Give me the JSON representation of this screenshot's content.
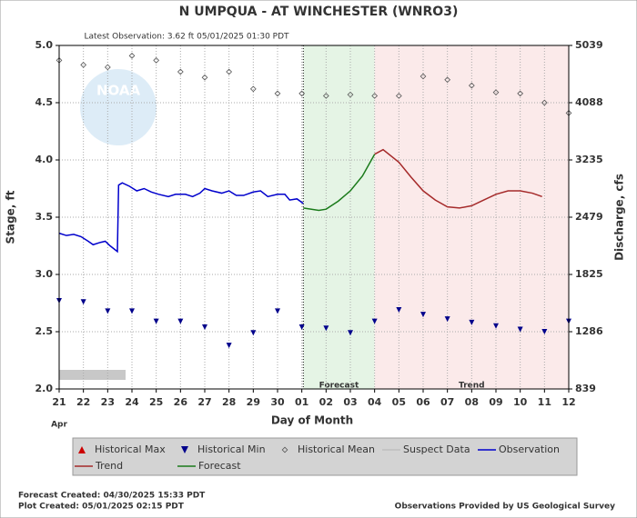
{
  "chart_data": {
    "type": "line",
    "title": "N UMPQUA - AT WINCHESTER  (WNRO3)",
    "subtitle": "Latest Observation: 3.62 ft 05/01/2025 01:30 PDT",
    "xlabel": "Day of Month",
    "xlabel_month": "Apr",
    "ylabel": "Stage, ft",
    "y2label": "Discharge, cfs",
    "logo_text": "NOAA",
    "xlim": [
      0,
      21
    ],
    "xticks": [
      {
        "value": 0,
        "label": "21"
      },
      {
        "value": 1,
        "label": "22"
      },
      {
        "value": 2,
        "label": "23"
      },
      {
        "value": 3,
        "label": "24"
      },
      {
        "value": 4,
        "label": "25"
      },
      {
        "value": 5,
        "label": "26"
      },
      {
        "value": 6,
        "label": "27"
      },
      {
        "value": 7,
        "label": "28"
      },
      {
        "value": 8,
        "label": "29"
      },
      {
        "value": 9,
        "label": "30"
      },
      {
        "value": 10,
        "label": "01"
      },
      {
        "value": 11,
        "label": "02"
      },
      {
        "value": 12,
        "label": "03"
      },
      {
        "value": 13,
        "label": "04"
      },
      {
        "value": 14,
        "label": "05"
      },
      {
        "value": 15,
        "label": "06"
      },
      {
        "value": 16,
        "label": "07"
      },
      {
        "value": 17,
        "label": "08"
      },
      {
        "value": 18,
        "label": "09"
      },
      {
        "value": 19,
        "label": "10"
      },
      {
        "value": 20,
        "label": "11"
      },
      {
        "value": 21,
        "label": "12"
      }
    ],
    "ylim": [
      2,
      5
    ],
    "yticks": [
      {
        "value": 2,
        "label": "2.0"
      },
      2.5,
      {
        "value": 3,
        "label": "3.0"
      },
      3.5,
      {
        "value": 4,
        "label": "4.0"
      },
      4.5,
      {
        "value": 5,
        "label": "5.0"
      }
    ],
    "y2ticks": [
      839,
      1286,
      1825,
      2479,
      3235,
      4088,
      5039
    ],
    "grid": true,
    "now": 10.06,
    "regions": [
      {
        "label": "Forecast",
        "start": 10.06,
        "end": 13,
        "color": "#e5f4e5"
      },
      {
        "label": "Trend",
        "start": 13,
        "end": 21,
        "color": "#fbeaea"
      }
    ],
    "series": [
      {
        "name": "Historical Max",
        "color": "#cc0000",
        "marker": "triangle-up",
        "x": [],
        "values": []
      },
      {
        "name": "Historical Min",
        "color": "#00008b",
        "marker": "triangle-down",
        "x": [
          0,
          1,
          2,
          3,
          4,
          5,
          6,
          7,
          8,
          9,
          10,
          11,
          12,
          13,
          14,
          15,
          16,
          17,
          18,
          19,
          20,
          21
        ],
        "values": [
          2.77,
          2.76,
          2.68,
          2.68,
          2.59,
          2.59,
          2.54,
          2.38,
          2.49,
          2.68,
          2.54,
          2.53,
          2.49,
          2.59,
          2.69,
          2.65,
          2.61,
          2.58,
          2.55,
          2.52,
          2.5,
          2.59
        ]
      },
      {
        "name": "Historical Mean",
        "color": "#555555",
        "marker": "diamond",
        "x": [
          0,
          1,
          2,
          3,
          4,
          5,
          6,
          7,
          8,
          9,
          10,
          11,
          12,
          13,
          14,
          15,
          16,
          17,
          18,
          19,
          20,
          21
        ],
        "values": [
          4.87,
          4.83,
          4.81,
          4.91,
          4.87,
          4.77,
          4.72,
          4.77,
          4.62,
          4.58,
          4.58,
          4.56,
          4.57,
          4.56,
          4.56,
          4.73,
          4.7,
          4.65,
          4.59,
          4.58,
          4.5,
          4.41
        ]
      },
      {
        "name": "Suspect Data",
        "color": "#c0c0c0",
        "marker": "line",
        "x": [],
        "values": []
      },
      {
        "name": "Observation",
        "color": "#0000cc",
        "marker": "line",
        "x": [
          0,
          0.3,
          0.6,
          0.9,
          1.2,
          1.4,
          1.7,
          1.9,
          2.1,
          2.4,
          2.45,
          2.6,
          2.9,
          3.2,
          3.5,
          3.8,
          4.1,
          4.5,
          4.8,
          5.2,
          5.5,
          5.8,
          6.0,
          6.3,
          6.7,
          7.0,
          7.3,
          7.6,
          8.0,
          8.3,
          8.6,
          9.0,
          9.3,
          9.5,
          9.8,
          10.06
        ],
        "values": [
          3.36,
          3.34,
          3.35,
          3.33,
          3.29,
          3.26,
          3.28,
          3.29,
          3.25,
          3.2,
          3.78,
          3.8,
          3.77,
          3.73,
          3.75,
          3.72,
          3.7,
          3.68,
          3.7,
          3.7,
          3.68,
          3.71,
          3.75,
          3.73,
          3.71,
          3.73,
          3.69,
          3.69,
          3.72,
          3.73,
          3.68,
          3.7,
          3.7,
          3.65,
          3.66,
          3.62
        ]
      },
      {
        "name": "Trend",
        "color": "#a52a2a",
        "marker": "line",
        "x": [
          13,
          13.35,
          14,
          14.5,
          15,
          15.5,
          16,
          16.5,
          17,
          17.5,
          18,
          18.5,
          19,
          19.5,
          19.9
        ],
        "values": [
          4.05,
          4.09,
          3.98,
          3.85,
          3.73,
          3.65,
          3.59,
          3.58,
          3.6,
          3.65,
          3.7,
          3.73,
          3.73,
          3.71,
          3.68
        ]
      },
      {
        "name": "Forecast",
        "color": "#1a7a1a",
        "marker": "line",
        "x": [
          10.06,
          10.7,
          11,
          11.5,
          12,
          12.5,
          13
        ],
        "values": [
          3.58,
          3.56,
          3.57,
          3.64,
          3.73,
          3.86,
          4.05
        ]
      }
    ],
    "footer_left": [
      "Forecast Created: 04/30/2025 15:33 PDT",
      "Plot Created: 05/01/2025 02:15 PDT"
    ],
    "footer_right": "Observations Provided by US Geological Survey"
  }
}
